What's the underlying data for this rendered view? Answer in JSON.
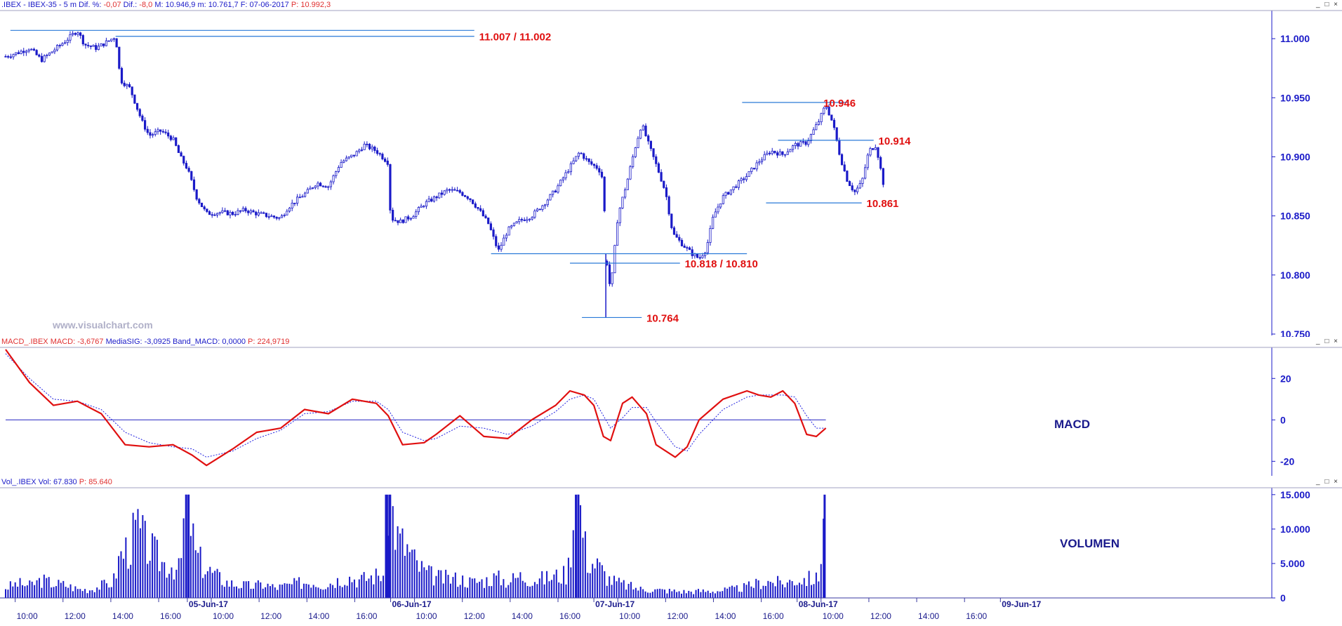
{
  "price_header": {
    "symbol": ".IBEX - IBEX-35 - 5 m",
    "dif_pct_label": "Dif. %:",
    "dif_pct": "-0,07",
    "dif_label": "Dif.:",
    "dif": "-8,0",
    "max_label": "M:",
    "max": "10.946,9",
    "min_label": "m:",
    "min": "10.761,7",
    "date_label": "F:",
    "date": "07-06-2017",
    "price_label": "P:",
    "price": "10.992,3"
  },
  "macd_header": {
    "name": "MACD_.IBEX",
    "macd_label": "MACD:",
    "macd": "-3,6767",
    "sig_label": "MediaSIG:",
    "sig": "-3,0925",
    "band_label": "Band_MACD:",
    "band": "0,0000",
    "p_label": "P:",
    "p": "224,9719"
  },
  "vol_header": {
    "name": "Vol_.IBEX",
    "vol_label": "Vol:",
    "vol": "67.830",
    "p_label": "P:",
    "p": "85.640"
  },
  "watermark": "www.visualchart.com",
  "macd_panel_label": "MACD",
  "vol_panel_label": "VOLUMEN",
  "window_buttons": "_ □ ×",
  "colors": {
    "axis": "#1a1ac8",
    "price": "#1a1ac8",
    "level_line": "#2a7ad8",
    "level_text": "#e01010",
    "macd": "#e01010",
    "signal": "#2020e0"
  },
  "chart_data": [
    {
      "type": "candlestick",
      "title": "",
      "ylim": [
        10750,
        11025
      ],
      "y_ticks": [
        "11.000",
        "10.950",
        "10.900",
        "10.850",
        "10.800",
        "10.750"
      ],
      "y_tick_values": [
        11000,
        10950,
        10900,
        10850,
        10800,
        10750
      ],
      "x_ticks": [
        "10:00",
        "12:00",
        "14:00",
        "16:00",
        "05-Jun-17",
        "10:00",
        "12:00",
        "14:00",
        "16:00",
        "06-Jun-17",
        "10:00",
        "12:00",
        "14:00",
        "16:00",
        "07-Jun-17",
        "10:00",
        "12:00",
        "14:00",
        "16:00",
        "08-Jun-17",
        "10:00",
        "12:00",
        "14:00",
        "16:00",
        "09-Jun-17"
      ],
      "x_tick_pos": [
        0.4,
        2.4,
        4.4,
        6.4,
        7.6,
        8.6,
        10.6,
        12.6,
        14.6,
        16.1,
        17.1,
        19.1,
        21.1,
        23.1,
        24.6,
        25.6,
        27.6,
        29.6,
        31.6,
        33.1,
        34.1,
        36.1,
        38.1,
        40.1,
        41.6
      ],
      "x_tick_bold": [
        false,
        false,
        false,
        false,
        true,
        false,
        false,
        false,
        false,
        true,
        false,
        false,
        false,
        false,
        true,
        false,
        false,
        false,
        false,
        true,
        false,
        false,
        false,
        false,
        true
      ],
      "close_path": [
        [
          0,
          10985
        ],
        [
          0.5,
          10988
        ],
        [
          1,
          10992
        ],
        [
          1.5,
          10982
        ],
        [
          2,
          10990
        ],
        [
          2.5,
          10998
        ],
        [
          3,
          11007
        ],
        [
          3.3,
          10995
        ],
        [
          3.8,
          10992
        ],
        [
          4.3,
          10998
        ],
        [
          4.6,
          11002
        ],
        [
          4.8,
          10965
        ],
        [
          5.2,
          10958
        ],
        [
          5.7,
          10930
        ],
        [
          6,
          10918
        ],
        [
          6.5,
          10922
        ],
        [
          7,
          10915
        ],
        [
          7.3,
          10900
        ],
        [
          7.6,
          10890
        ],
        [
          8.0,
          10865
        ],
        [
          8.4,
          10852
        ],
        [
          9,
          10853
        ],
        [
          9.5,
          10852
        ],
        [
          10,
          10855
        ],
        [
          10.5,
          10852
        ],
        [
          11,
          10850
        ],
        [
          11.5,
          10848
        ],
        [
          11.8,
          10857
        ],
        [
          12.2,
          10864
        ],
        [
          12.6,
          10870
        ],
        [
          13,
          10878
        ],
        [
          13.5,
          10875
        ],
        [
          14,
          10895
        ],
        [
          14.6,
          10902
        ],
        [
          15,
          10910
        ],
        [
          15.5,
          10905
        ],
        [
          16,
          10895
        ],
        [
          16.1,
          10848
        ],
        [
          16.5,
          10845
        ],
        [
          17,
          10850
        ],
        [
          17.5,
          10860
        ],
        [
          18,
          10866
        ],
        [
          18.5,
          10872
        ],
        [
          19,
          10870
        ],
        [
          19.4,
          10865
        ],
        [
          19.8,
          10855
        ],
        [
          20.2,
          10843
        ],
        [
          20.6,
          10820
        ],
        [
          21,
          10838
        ],
        [
          21.5,
          10846
        ],
        [
          22,
          10850
        ],
        [
          22.5,
          10860
        ],
        [
          23,
          10872
        ],
        [
          23.5,
          10888
        ],
        [
          24,
          10904
        ],
        [
          24.4,
          10895
        ],
        [
          24.8,
          10890
        ],
        [
          25.0,
          10880
        ],
        [
          25.1,
          10818
        ],
        [
          25.3,
          10786
        ],
        [
          25.6,
          10850
        ],
        [
          26,
          10880
        ],
        [
          26.3,
          10906
        ],
        [
          26.6,
          10928
        ],
        [
          26.9,
          10910
        ],
        [
          27.3,
          10888
        ],
        [
          27.6,
          10870
        ],
        [
          27.9,
          10835
        ],
        [
          28.3,
          10826
        ],
        [
          28.7,
          10818
        ],
        [
          29,
          10814
        ],
        [
          29.3,
          10822
        ],
        [
          29.6,
          10850
        ],
        [
          30,
          10866
        ],
        [
          30.5,
          10875
        ],
        [
          31,
          10884
        ],
        [
          31.5,
          10896
        ],
        [
          32,
          10905
        ],
        [
          32.5,
          10902
        ],
        [
          33,
          10910
        ],
        [
          33.5,
          10912
        ],
        [
          34,
          10930
        ],
        [
          34.3,
          10944
        ],
        [
          34.6,
          10928
        ],
        [
          34.9,
          10900
        ],
        [
          35.2,
          10880
        ],
        [
          35.5,
          10870
        ],
        [
          35.8,
          10878
        ],
        [
          36.1,
          10905
        ],
        [
          36.4,
          10910
        ],
        [
          36.7,
          10878
        ]
      ],
      "levels": [
        {
          "price": 11007,
          "x0": 0.2,
          "x1": 19.6
        },
        {
          "price": 11002,
          "x0": 4.6,
          "x1": 19.6,
          "label": "11.007 / 11.002",
          "lx": 19.8
        },
        {
          "price": 10946,
          "x0": 30.8,
          "x1": 35.2,
          "label": "10.946",
          "lx": 34.2
        },
        {
          "price": 10914,
          "x0": 32.3,
          "x1": 36.3,
          "label": "10.914",
          "lx": 36.5
        },
        {
          "price": 10861,
          "x0": 31.8,
          "x1": 35.8,
          "label": "10.861",
          "lx": 36.0
        },
        {
          "price": 10818,
          "x0": 20.3,
          "x1": 31.0
        },
        {
          "price": 10810,
          "x0": 23.6,
          "x1": 28.2,
          "label": "10.818 / 10.810",
          "lx": 28.4
        },
        {
          "price": 10764,
          "x0": 24.1,
          "x1": 26.6,
          "label": "10.764",
          "lx": 26.8
        }
      ]
    },
    {
      "type": "line",
      "title": "MACD",
      "ylim": [
        -27,
        35
      ],
      "y_ticks": [
        "20",
        "0",
        "-20"
      ],
      "y_tick_values": [
        20,
        0,
        -20
      ],
      "zero_line": 0,
      "series": [
        {
          "name": "MACD",
          "points": [
            [
              0,
              34
            ],
            [
              1,
              18
            ],
            [
              2,
              7
            ],
            [
              3,
              9
            ],
            [
              4,
              3
            ],
            [
              5,
              -12
            ],
            [
              6,
              -13
            ],
            [
              7,
              -12
            ],
            [
              7.8,
              -17
            ],
            [
              8.4,
              -22
            ],
            [
              9.5,
              -14
            ],
            [
              10.5,
              -6
            ],
            [
              11.5,
              -4
            ],
            [
              12.5,
              5
            ],
            [
              13.5,
              3
            ],
            [
              14.5,
              10
            ],
            [
              15.5,
              8
            ],
            [
              16,
              2
            ],
            [
              16.6,
              -12
            ],
            [
              17.5,
              -11
            ],
            [
              18,
              -7
            ],
            [
              19,
              2
            ],
            [
              20,
              -8
            ],
            [
              21,
              -9
            ],
            [
              22,
              0
            ],
            [
              23,
              7
            ],
            [
              23.6,
              14
            ],
            [
              24.2,
              12
            ],
            [
              24.6,
              7
            ],
            [
              25,
              -8
            ],
            [
              25.3,
              -10
            ],
            [
              25.8,
              8
            ],
            [
              26.2,
              11
            ],
            [
              26.8,
              3
            ],
            [
              27.2,
              -12
            ],
            [
              28,
              -18
            ],
            [
              28.5,
              -13
            ],
            [
              29,
              0
            ],
            [
              30,
              10
            ],
            [
              31,
              14
            ],
            [
              31.5,
              12
            ],
            [
              32,
              11
            ],
            [
              32.5,
              14
            ],
            [
              33,
              8
            ],
            [
              33.5,
              -7
            ],
            [
              33.9,
              -8
            ],
            [
              34.3,
              -4
            ]
          ]
        },
        {
          "name": "MediaSIG",
          "points": [
            [
              0,
              32
            ],
            [
              1,
              20
            ],
            [
              2,
              10
            ],
            [
              3,
              9
            ],
            [
              4,
              5
            ],
            [
              5,
              -6
            ],
            [
              6,
              -11
            ],
            [
              7,
              -13
            ],
            [
              7.8,
              -14
            ],
            [
              8.4,
              -18
            ],
            [
              9.5,
              -15
            ],
            [
              10.5,
              -9
            ],
            [
              11.5,
              -5
            ],
            [
              12.5,
              3
            ],
            [
              13.5,
              4
            ],
            [
              14.5,
              9
            ],
            [
              15.5,
              9
            ],
            [
              16,
              5
            ],
            [
              16.6,
              -6
            ],
            [
              17.5,
              -10
            ],
            [
              18,
              -9
            ],
            [
              19,
              -3
            ],
            [
              20,
              -4
            ],
            [
              21,
              -7
            ],
            [
              22,
              -3
            ],
            [
              23,
              4
            ],
            [
              23.6,
              10
            ],
            [
              24.2,
              12
            ],
            [
              24.6,
              10
            ],
            [
              25,
              2
            ],
            [
              25.3,
              -4
            ],
            [
              25.8,
              1
            ],
            [
              26.2,
              6
            ],
            [
              26.8,
              6
            ],
            [
              27.2,
              -1
            ],
            [
              28,
              -13
            ],
            [
              28.5,
              -15
            ],
            [
              29,
              -7
            ],
            [
              30,
              5
            ],
            [
              31,
              11
            ],
            [
              31.5,
              12
            ],
            [
              32,
              12
            ],
            [
              32.5,
              12
            ],
            [
              33,
              11
            ],
            [
              33.5,
              2
            ],
            [
              33.9,
              -4
            ],
            [
              34.3,
              -4
            ]
          ]
        }
      ]
    },
    {
      "type": "bar",
      "title": "VOLUMEN",
      "ylim": [
        0,
        16000
      ],
      "y_ticks": [
        "15.000",
        "10.000",
        "5.000",
        "0"
      ],
      "y_tick_values": [
        15000,
        10000,
        5000,
        0
      ],
      "values": [
        [
          0,
          1500
        ],
        [
          0.5,
          2100
        ],
        [
          1,
          1800
        ],
        [
          1.5,
          2600
        ],
        [
          2,
          2100
        ],
        [
          2.5,
          1900
        ],
        [
          3,
          1300
        ],
        [
          3.5,
          1200
        ],
        [
          4,
          1800
        ],
        [
          4.5,
          2300
        ],
        [
          4.8,
          6300
        ],
        [
          5.2,
          7600
        ],
        [
          5.5,
          10400
        ],
        [
          5.8,
          8100
        ],
        [
          6.2,
          6500
        ],
        [
          6.6,
          5000
        ],
        [
          7,
          4800
        ],
        [
          7.3,
          3900
        ],
        [
          7.55,
          15000
        ],
        [
          7.65,
          15000
        ],
        [
          7.9,
          6600
        ],
        [
          8.3,
          4500
        ],
        [
          8.8,
          3200
        ],
        [
          9.3,
          2200
        ],
        [
          9.8,
          1900
        ],
        [
          10.3,
          1700
        ],
        [
          10.8,
          2000
        ],
        [
          11.3,
          1500
        ],
        [
          11.8,
          1800
        ],
        [
          12.3,
          2200
        ],
        [
          12.8,
          2400
        ],
        [
          13.3,
          1900
        ],
        [
          13.8,
          2500
        ],
        [
          14.3,
          3100
        ],
        [
          14.8,
          2600
        ],
        [
          15.3,
          3100
        ],
        [
          15.8,
          3500
        ],
        [
          15.95,
          15000
        ],
        [
          16.05,
          15000
        ],
        [
          16.4,
          8600
        ],
        [
          16.8,
          7200
        ],
        [
          17.2,
          4800
        ],
        [
          17.6,
          3600
        ],
        [
          18,
          3000
        ],
        [
          18.5,
          2800
        ],
        [
          19,
          2800
        ],
        [
          19.5,
          2300
        ],
        [
          20,
          2500
        ],
        [
          20.5,
          3000
        ],
        [
          21,
          2400
        ],
        [
          21.5,
          3200
        ],
        [
          22,
          2700
        ],
        [
          22.5,
          2800
        ],
        [
          23,
          3200
        ],
        [
          23.5,
          3500
        ],
        [
          23.85,
          15000
        ],
        [
          23.95,
          15000
        ],
        [
          24.3,
          5800
        ],
        [
          24.8,
          4600
        ],
        [
          25.2,
          2800
        ],
        [
          25.6,
          2200
        ],
        [
          26,
          1800
        ],
        [
          26.5,
          1300
        ],
        [
          27,
          1200
        ],
        [
          27.5,
          1100
        ],
        [
          28,
          1000
        ],
        [
          28.5,
          900
        ],
        [
          29,
          1000
        ],
        [
          29.5,
          1000
        ],
        [
          30,
          1100
        ],
        [
          30.5,
          1300
        ],
        [
          31,
          1600
        ],
        [
          31.5,
          2200
        ],
        [
          32,
          2400
        ],
        [
          32.5,
          2100
        ],
        [
          33,
          2600
        ],
        [
          33.5,
          2800
        ],
        [
          34,
          2700
        ],
        [
          34.25,
          15000
        ]
      ]
    }
  ]
}
